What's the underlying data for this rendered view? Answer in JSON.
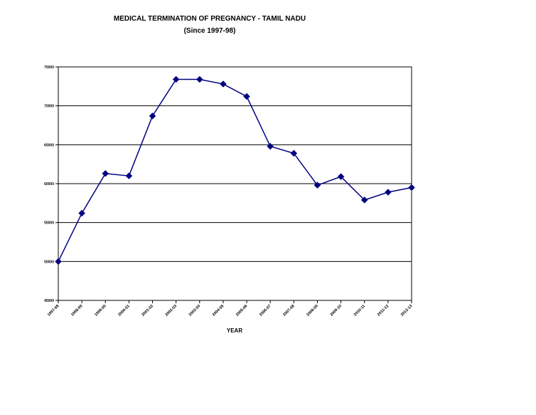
{
  "chart_data": {
    "type": "line",
    "title": "MEDICAL TERMINATION OF PREGNANCY - TAMIL NADU",
    "subtitle": "(Since 1997-98)",
    "xlabel": "YEAR",
    "ylabel": "",
    "ylim": [
      45000,
      75000
    ],
    "yticks": [
      45000,
      50000,
      55000,
      60000,
      65000,
      70000,
      75000
    ],
    "ytick_labels": [
      "45000",
      "50000",
      "55000",
      "60000",
      "65000",
      "70000",
      "75000"
    ],
    "grid": true,
    "legend": "none",
    "categories": [
      "1997-98",
      "1998-99",
      "1999-00",
      "2000-01",
      "2001-02",
      "2002-03",
      "2003-04",
      "2004-05",
      "2005-06",
      "2006-07",
      "2007-08",
      "2008-09",
      "2009-10",
      "2010-11",
      "2011-12",
      "2012-13"
    ],
    "series": [
      {
        "name": "",
        "color": "#000080",
        "values": [
          50000,
          56200,
          61300,
          61000,
          68700,
          73400,
          73400,
          72800,
          71200,
          64800,
          63900,
          59800,
          60900,
          57900,
          58900,
          59500
        ]
      }
    ]
  }
}
